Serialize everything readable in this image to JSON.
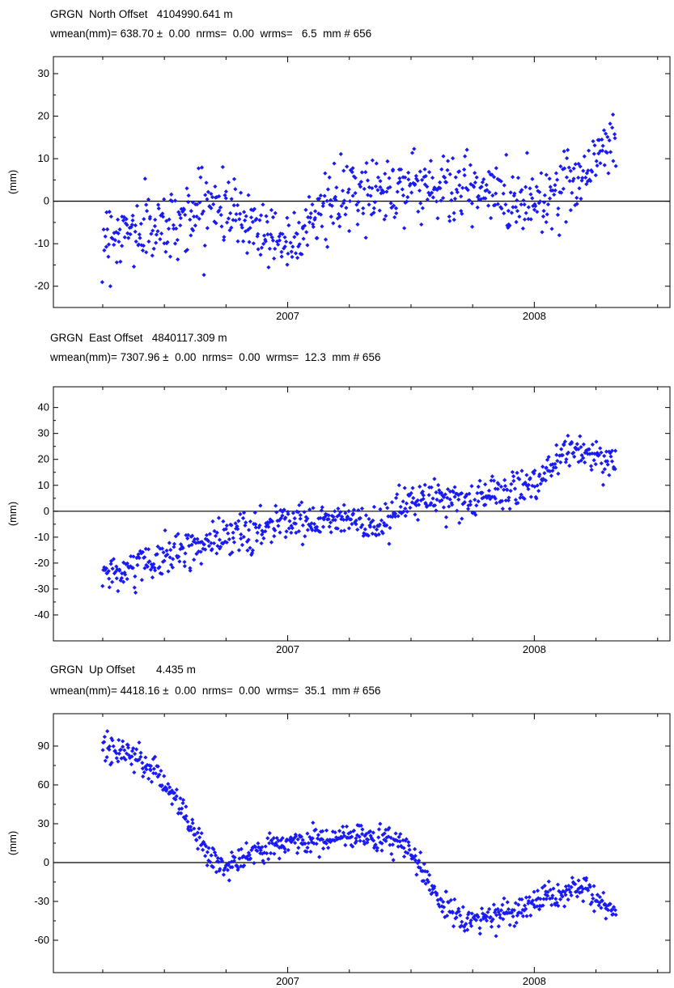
{
  "chart_data": [
    {
      "type": "scatter",
      "title": "GRGN  North Offset   4104990.641 m",
      "subtitle": "wmean(mm)= 638.70 ±  0.00  nrms=  0.00  wrms=   6.5  mm # 656",
      "ylabel": "(mm)",
      "xlim": [
        2006.05,
        2008.55
      ],
      "ylim": [
        -25,
        34
      ],
      "yticks": [
        -20,
        -10,
        0,
        10,
        20,
        30
      ],
      "xticks": [
        2007,
        2008
      ],
      "xtick_labels": [
        "2007",
        "2008"
      ],
      "zero_line": true,
      "marker_color": "#1a1af5",
      "x_range": [
        2006.25,
        2008.33
      ],
      "trend": [
        [
          2006.25,
          -8
        ],
        [
          2006.5,
          -6
        ],
        [
          2006.7,
          0
        ],
        [
          2006.85,
          -5
        ],
        [
          2007.0,
          -10
        ],
        [
          2007.1,
          -3
        ],
        [
          2007.3,
          2
        ],
        [
          2007.5,
          4
        ],
        [
          2007.7,
          3
        ],
        [
          2007.95,
          0
        ],
        [
          2008.1,
          2
        ],
        [
          2008.25,
          10
        ],
        [
          2008.33,
          15
        ]
      ],
      "noise": 4.0
    },
    {
      "type": "scatter",
      "title": "GRGN  East Offset   4840117.309 m",
      "subtitle": "wmean(mm)= 7307.96 ±  0.00  nrms=  0.00  wrms=  12.3  mm # 656",
      "ylabel": "(mm)",
      "xlim": [
        2006.05,
        2008.55
      ],
      "ylim": [
        -50,
        48
      ],
      "yticks": [
        -40,
        -30,
        -20,
        -10,
        0,
        10,
        20,
        30,
        40
      ],
      "xticks": [
        2007,
        2008
      ],
      "xtick_labels": [
        "2007",
        "2008"
      ],
      "zero_line": true,
      "marker_color": "#1a1af5",
      "x_range": [
        2006.25,
        2008.33
      ],
      "trend": [
        [
          2006.25,
          -25
        ],
        [
          2006.5,
          -18
        ],
        [
          2006.75,
          -10
        ],
        [
          2007.0,
          -4
        ],
        [
          2007.25,
          -2
        ],
        [
          2007.35,
          -8
        ],
        [
          2007.5,
          4
        ],
        [
          2007.75,
          5
        ],
        [
          2008.0,
          10
        ],
        [
          2008.15,
          25
        ],
        [
          2008.33,
          18
        ]
      ],
      "noise": 3.5
    },
    {
      "type": "scatter",
      "title": "GRGN  Up Offset       4.435 m",
      "subtitle": "wmean(mm)= 4418.16 ±  0.00  nrms=  0.00  wrms=  35.1  mm # 656",
      "ylabel": "(mm)",
      "xlim": [
        2006.05,
        2008.55
      ],
      "ylim": [
        -85,
        115
      ],
      "yticks": [
        -60,
        -30,
        0,
        30,
        60,
        90
      ],
      "xticks": [
        2007,
        2008
      ],
      "xtick_labels": [
        "2007",
        "2008"
      ],
      "zero_line": true,
      "marker_color": "#1a1af5",
      "x_range": [
        2006.25,
        2008.33
      ],
      "trend": [
        [
          2006.25,
          88
        ],
        [
          2006.4,
          82
        ],
        [
          2006.55,
          50
        ],
        [
          2006.68,
          5
        ],
        [
          2006.75,
          -3
        ],
        [
          2006.85,
          8
        ],
        [
          2007.0,
          15
        ],
        [
          2007.2,
          20
        ],
        [
          2007.4,
          20
        ],
        [
          2007.5,
          10
        ],
        [
          2007.58,
          -20
        ],
        [
          2007.7,
          -45
        ],
        [
          2007.85,
          -42
        ],
        [
          2008.0,
          -30
        ],
        [
          2008.2,
          -20
        ],
        [
          2008.33,
          -40
        ]
      ],
      "noise": 5.0
    }
  ]
}
